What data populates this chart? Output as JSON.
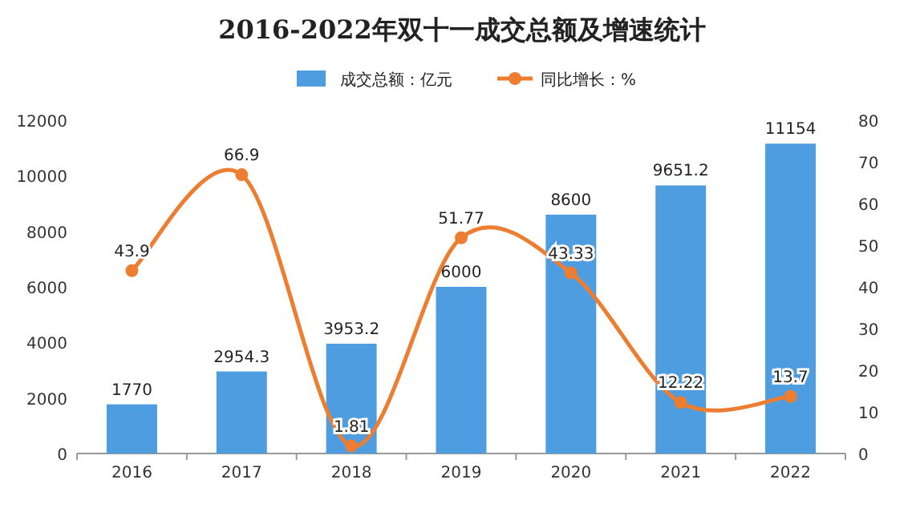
{
  "chart_data": {
    "type": "bar",
    "title": "2016-2022年双十一成交总额及增速统计",
    "categories": [
      "2016",
      "2017",
      "2018",
      "2019",
      "2020",
      "2021",
      "2022"
    ],
    "series": [
      {
        "name": "成交总额：亿元",
        "color": "#4d9de0",
        "values": [
          1770,
          2954.3,
          3953.2,
          6000,
          8600,
          9651.2,
          11154
        ]
      },
      {
        "name": "同比增长：%",
        "type": "line",
        "axis": "y2",
        "color": "#ed7d31",
        "values": [
          43.9,
          66.9,
          1.81,
          51.77,
          43.33,
          12.22,
          13.7
        ]
      }
    ],
    "ylim": [
      0,
      12000
    ],
    "yticks": [
      0,
      2000,
      4000,
      6000,
      8000,
      10000,
      12000
    ],
    "y2lim": [
      0,
      80
    ],
    "y2ticks": [
      0,
      10,
      20,
      30,
      40,
      50,
      60,
      70,
      80
    ],
    "legend": "top",
    "grid": false,
    "data_labels": true,
    "marker": "circle"
  }
}
